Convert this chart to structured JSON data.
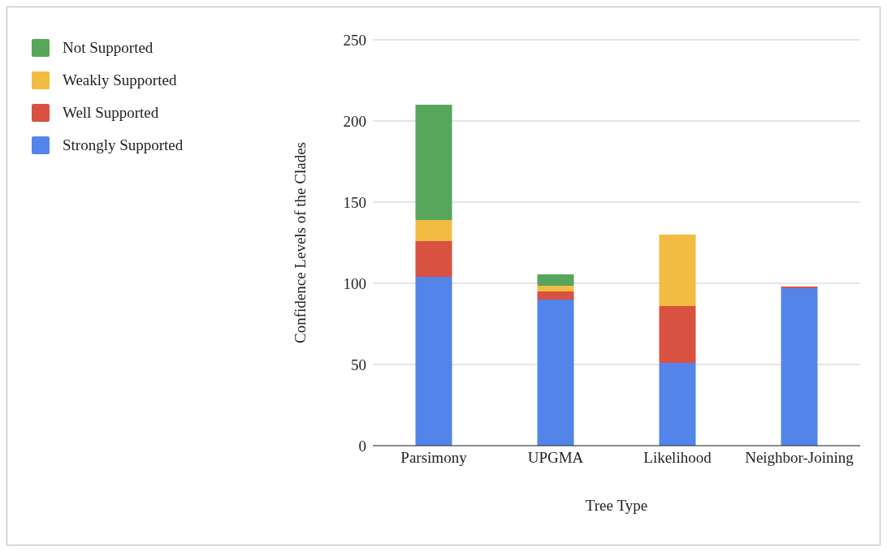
{
  "chart_data": {
    "type": "bar",
    "stacked": true,
    "xlabel": "Tree Type",
    "ylabel": "Confidence Levels of the Clades",
    "categories": [
      "Parsimony",
      "UPGMA",
      "Likelihood",
      "Neighbor-Joining"
    ],
    "series": [
      {
        "name": "Strongly Supported",
        "color": "#5384ea",
        "values": [
          104,
          90,
          51,
          97
        ]
      },
      {
        "name": "Well Supported",
        "color": "#d95140",
        "values": [
          22,
          5,
          35,
          1
        ]
      },
      {
        "name": "Weakly Supported",
        "color": "#f0bd42",
        "values": [
          13,
          3.5,
          44,
          0
        ]
      },
      {
        "name": "Not Supported",
        "color": "#58a65c",
        "values": [
          71,
          7,
          0,
          0
        ]
      }
    ],
    "ylim": [
      0,
      250
    ],
    "yticks": [
      0,
      50,
      100,
      150,
      200,
      250
    ],
    "grid": "y",
    "legend": "top left"
  }
}
